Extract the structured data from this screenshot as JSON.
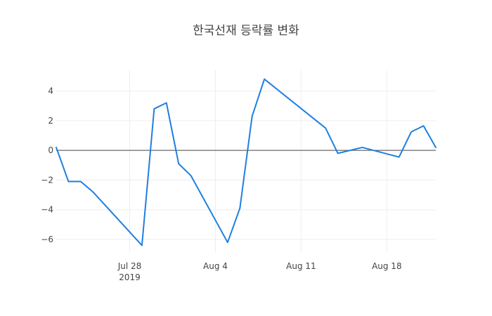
{
  "chart_data": {
    "type": "line",
    "title": "한국선재 등락률 변화",
    "xlabel": "",
    "ylabel": "",
    "x": [
      "2019-07-22",
      "2019-07-23",
      "2019-07-24",
      "2019-07-25",
      "2019-07-29",
      "2019-07-30",
      "2019-07-31",
      "2019-08-01",
      "2019-08-02",
      "2019-08-05",
      "2019-08-06",
      "2019-08-07",
      "2019-08-08",
      "2019-08-13",
      "2019-08-14",
      "2019-08-16",
      "2019-08-19",
      "2019-08-20",
      "2019-08-21",
      "2019-08-22"
    ],
    "series": [
      {
        "name": "",
        "values": [
          0.2,
          -2.1,
          -2.1,
          -2.8,
          -6.4,
          2.8,
          3.2,
          -0.9,
          -1.7,
          -6.2,
          -3.9,
          2.3,
          4.8,
          1.5,
          -0.2,
          0.2,
          -0.45,
          1.25,
          1.65,
          0.2
        ]
      }
    ],
    "xlim": [
      "2019-07-22",
      "2019-08-22"
    ],
    "ylim": [
      -6.9,
      5.4
    ],
    "x_ticks": [
      {
        "value": "2019-07-28",
        "label": "Jul 28",
        "sublabel": "2019"
      },
      {
        "value": "2019-08-04",
        "label": "Aug 4",
        "sublabel": ""
      },
      {
        "value": "2019-08-11",
        "label": "Aug 11",
        "sublabel": ""
      },
      {
        "value": "2019-08-18",
        "label": "Aug 18",
        "sublabel": ""
      }
    ],
    "y_ticks": [
      {
        "value": 4,
        "label": "4"
      },
      {
        "value": 2,
        "label": "2"
      },
      {
        "value": 0,
        "label": "0"
      },
      {
        "value": -2,
        "label": "−2"
      },
      {
        "value": -4,
        "label": "−4"
      },
      {
        "value": -6,
        "label": "−6"
      }
    ],
    "grid": true,
    "zero_line": true,
    "colors": {
      "line": "#1f7fe0",
      "grid": "#eeeeee",
      "zero_line": "#444444",
      "text": "#444444"
    }
  }
}
